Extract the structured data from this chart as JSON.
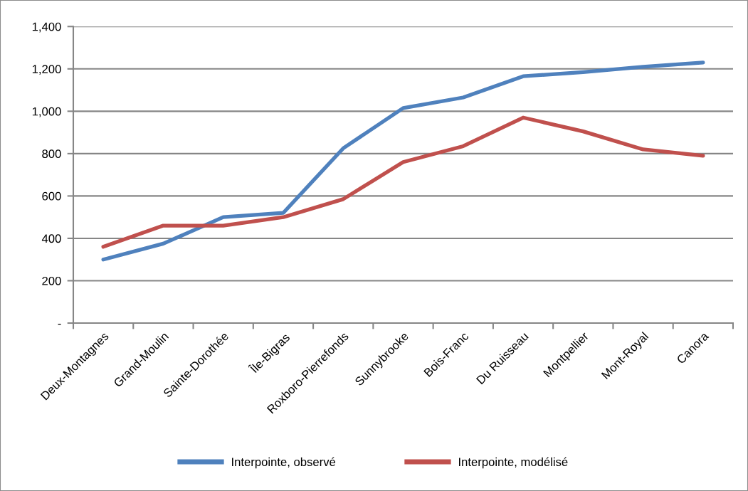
{
  "chart_data": {
    "type": "line",
    "categories": [
      "Deux-Montagnes",
      "Grand-Moulin",
      "Sainte-Dorothée",
      "Île-Bigras",
      "Roxboro-Pierrefonds",
      "Sunnybrooke",
      "Bois-Franc",
      "Du Ruisseau",
      "Montpellier",
      "Mont-Royal",
      "Canora"
    ],
    "series": [
      {
        "name": "Interpointe, observé",
        "color": "#4f81bd",
        "values": [
          300,
          375,
          500,
          520,
          825,
          1015,
          1065,
          1165,
          1185,
          1210,
          1230
        ]
      },
      {
        "name": "Interpointe, modélisé",
        "color": "#c0504d",
        "values": [
          360,
          460,
          460,
          500,
          585,
          760,
          835,
          970,
          905,
          820,
          790
        ]
      }
    ],
    "ylim": [
      0,
      1400
    ],
    "yticks": [
      {
        "value": 0,
        "label": "-"
      },
      200,
      400,
      600,
      800,
      {
        "value": 1000,
        "label": "1,000"
      },
      {
        "value": 1200,
        "label": "1,200"
      },
      {
        "value": 1400,
        "label": "1,400"
      }
    ],
    "grid": "y",
    "legend": "bottom",
    "marker": "none",
    "line_style": "solid"
  }
}
